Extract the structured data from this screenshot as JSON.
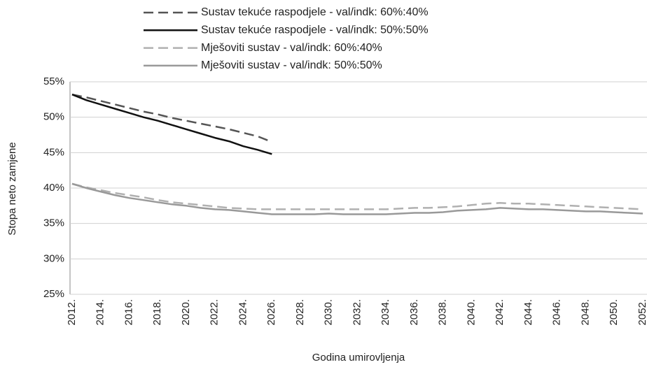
{
  "chart_data": {
    "type": "line",
    "x_label": "Godina umirovljenja",
    "y_label": "Stopa neto zamjene",
    "categories": [
      "2012.",
      null,
      "2014.",
      null,
      "2016.",
      null,
      "2018.",
      null,
      "2020.",
      null,
      "2022.",
      null,
      "2024.",
      null,
      "2026.",
      null,
      "2028.",
      null,
      "2030.",
      null,
      "2032.",
      null,
      "2034.",
      null,
      "2036.",
      null,
      "2038.",
      null,
      "2040.",
      null,
      "2042.",
      null,
      "2044.",
      null,
      "2046.",
      null,
      "2048.",
      null,
      "2050.",
      null,
      "2052."
    ],
    "ylim": [
      25,
      55
    ],
    "yticks": [
      {
        "value": 25,
        "label": "25%"
      },
      {
        "value": 30,
        "label": "30%"
      },
      {
        "value": 35,
        "label": "35%"
      },
      {
        "value": 40,
        "label": "40%"
      },
      {
        "value": 45,
        "label": "45%"
      },
      {
        "value": 50,
        "label": "50%"
      },
      {
        "value": 55,
        "label": "55%"
      }
    ],
    "grid": true,
    "legend": "top",
    "series": [
      {
        "name": "Sustav tekuće raspodjele - val/indk: 60%:40%",
        "color": "#555555",
        "dashed": true,
        "values": [
          53.2,
          52.8,
          52.3,
          51.8,
          51.3,
          50.8,
          50.4,
          49.9,
          49.5,
          49.1,
          48.7,
          48.3,
          47.8,
          47.3,
          46.5,
          null,
          null,
          null,
          null,
          null,
          null,
          null,
          null,
          null,
          null,
          null,
          null,
          null,
          null,
          null,
          null,
          null,
          null,
          null,
          null,
          null,
          null,
          null,
          null,
          null,
          null
        ]
      },
      {
        "name": "Sustav tekuće raspodjele - val/indk: 50%:50%",
        "color": "#111111",
        "dashed": false,
        "values": [
          53.2,
          52.4,
          51.8,
          51.2,
          50.6,
          50.0,
          49.5,
          48.9,
          48.3,
          47.7,
          47.1,
          46.6,
          45.9,
          45.4,
          44.8,
          null,
          null,
          null,
          null,
          null,
          null,
          null,
          null,
          null,
          null,
          null,
          null,
          null,
          null,
          null,
          null,
          null,
          null,
          null,
          null,
          null,
          null,
          null,
          null,
          null,
          null
        ]
      },
      {
        "name": "Mješoviti sustav - val/indk: 60%:40%",
        "color": "#b0b0b0",
        "dashed": true,
        "values": [
          40.6,
          40.1,
          39.7,
          39.3,
          39.0,
          38.7,
          38.3,
          38.0,
          37.8,
          37.6,
          37.4,
          37.2,
          37.1,
          37.0,
          37.0,
          37.0,
          37.0,
          37.0,
          37.0,
          37.0,
          37.0,
          37.0,
          37.0,
          37.1,
          37.2,
          37.2,
          37.3,
          37.4,
          37.6,
          37.8,
          37.9,
          37.8,
          37.8,
          37.7,
          37.6,
          37.5,
          37.4,
          37.3,
          37.2,
          37.1,
          37.0
        ]
      },
      {
        "name": "Mješoviti sustav - val/indk: 50%:50%",
        "color": "#999999",
        "dashed": false,
        "values": [
          40.6,
          40.0,
          39.5,
          39.0,
          38.6,
          38.3,
          38.0,
          37.7,
          37.5,
          37.2,
          37.0,
          36.9,
          36.7,
          36.5,
          36.3,
          36.3,
          36.3,
          36.3,
          36.4,
          36.3,
          36.3,
          36.3,
          36.3,
          36.4,
          36.5,
          36.5,
          36.6,
          36.8,
          36.9,
          37.0,
          37.2,
          37.1,
          37.0,
          37.0,
          36.9,
          36.8,
          36.7,
          36.7,
          36.6,
          36.5,
          36.4
        ]
      }
    ]
  }
}
